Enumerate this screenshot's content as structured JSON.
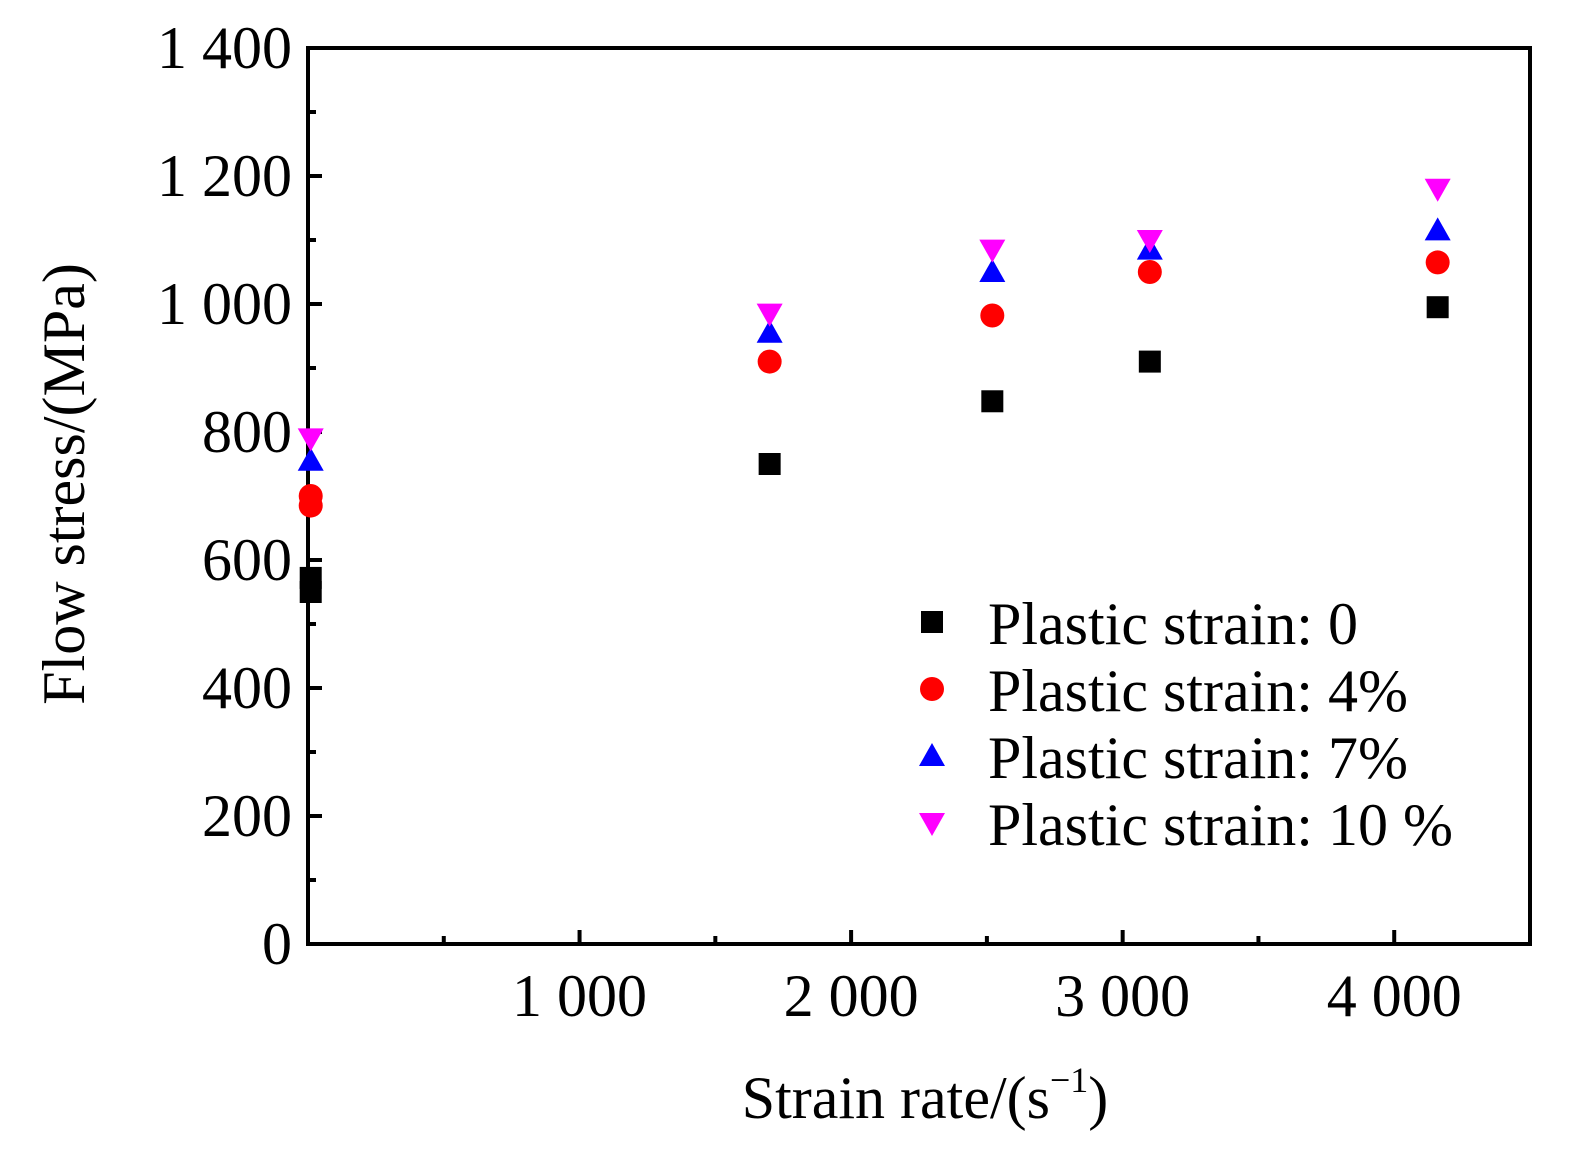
{
  "chart_data": {
    "type": "scatter",
    "title": "",
    "xlabel": "Strain rate/(s",
    "xlabel_sup": "−1",
    "xlabel_close": ")",
    "ylabel": "Flow stress/(MPa)",
    "xlim": [
      0,
      4500
    ],
    "ylim": [
      0,
      1400
    ],
    "x_ticks": [
      {
        "value": 1000,
        "label": "1 000"
      },
      {
        "value": 2000,
        "label": "2 000"
      },
      {
        "value": 3000,
        "label": "3 000"
      },
      {
        "value": 4000,
        "label": "4 000"
      }
    ],
    "x_minor_ticks": [
      500,
      1500,
      2500,
      3500
    ],
    "y_ticks": [
      {
        "value": 0,
        "label": "0"
      },
      {
        "value": 200,
        "label": "200"
      },
      {
        "value": 400,
        "label": "400"
      },
      {
        "value": 600,
        "label": "600"
      },
      {
        "value": 800,
        "label": "800"
      },
      {
        "value": 1000,
        "label": "1 000"
      },
      {
        "value": 1200,
        "label": "1 200"
      },
      {
        "value": 1400,
        "label": "1 400"
      }
    ],
    "y_minor_ticks": [
      100,
      300,
      500,
      700,
      900,
      1100,
      1300
    ],
    "legend_position": "lower-right",
    "series": [
      {
        "name": "Plastic strain: 0",
        "marker": "square",
        "color": "#000000",
        "points": [
          [
            10,
            550
          ],
          [
            10,
            572
          ],
          [
            1700,
            750
          ],
          [
            2520,
            848
          ],
          [
            3100,
            910
          ],
          [
            4160,
            995
          ]
        ]
      },
      {
        "name": "Plastic strain: 4%",
        "marker": "circle",
        "color": "#ff0000",
        "points": [
          [
            10,
            685
          ],
          [
            10,
            700
          ],
          [
            1700,
            910
          ],
          [
            2520,
            982
          ],
          [
            3100,
            1050
          ],
          [
            4160,
            1065
          ]
        ]
      },
      {
        "name": "Plastic strain: 7%",
        "marker": "triangle-up",
        "color": "#0000ff",
        "points": [
          [
            10,
            755
          ],
          [
            1700,
            955
          ],
          [
            2520,
            1050
          ],
          [
            3100,
            1085
          ],
          [
            4160,
            1115
          ]
        ]
      },
      {
        "name": "Plastic strain: 10 %",
        "marker": "triangle-down",
        "color": "#ff00ff",
        "points": [
          [
            10,
            790
          ],
          [
            1700,
            985
          ],
          [
            2520,
            1085
          ],
          [
            3100,
            1100
          ],
          [
            4160,
            1180
          ]
        ]
      }
    ]
  }
}
